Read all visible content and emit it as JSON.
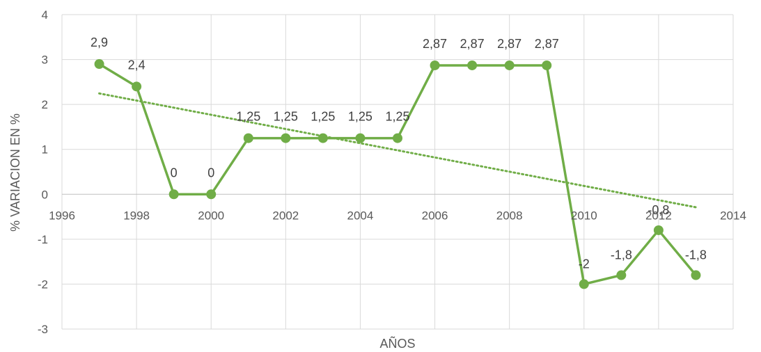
{
  "chart_data": {
    "type": "scatter",
    "xlabel": "AÑOS",
    "ylabel": "% VARIACION EN %",
    "xlim": [
      1996,
      2014
    ],
    "ylim": [
      -3,
      4
    ],
    "xticks": [
      1996,
      1998,
      2000,
      2002,
      2004,
      2006,
      2008,
      2010,
      2012,
      2014
    ],
    "yticks": [
      -3,
      -2,
      -1,
      0,
      1,
      2,
      3,
      4
    ],
    "grid": true,
    "series": [
      {
        "color": "#70ad47",
        "x": [
          1997,
          1998,
          1999,
          2000,
          2001,
          2002,
          2003,
          2004,
          2005,
          2006,
          2007,
          2008,
          2009,
          2010,
          2011,
          2012,
          2013
        ],
        "y": [
          2.9,
          2.4,
          0,
          0,
          1.25,
          1.25,
          1.25,
          1.25,
          1.25,
          2.87,
          2.87,
          2.87,
          2.87,
          -2,
          -1.8,
          -0.8,
          -1.8
        ],
        "labels": [
          "2,9",
          "2,4",
          "0",
          "0",
          "1,25",
          "1,25",
          "1,25",
          "1,25",
          "1,25",
          "2,87",
          "2,87",
          "2,87",
          "2,87",
          "-2",
          "-1,8",
          "-0,8",
          "-1,8"
        ]
      }
    ],
    "trendline": {
      "type": "linear",
      "style": "dotted",
      "color": "#70ad47"
    },
    "xtick_labels": [
      "1996",
      "1998",
      "2000",
      "2002",
      "2004",
      "2006",
      "2008",
      "2010",
      "2012",
      "2014"
    ],
    "ytick_labels": [
      "-3",
      "-2",
      "-1",
      "0",
      "1",
      "2",
      "3",
      "4"
    ]
  }
}
